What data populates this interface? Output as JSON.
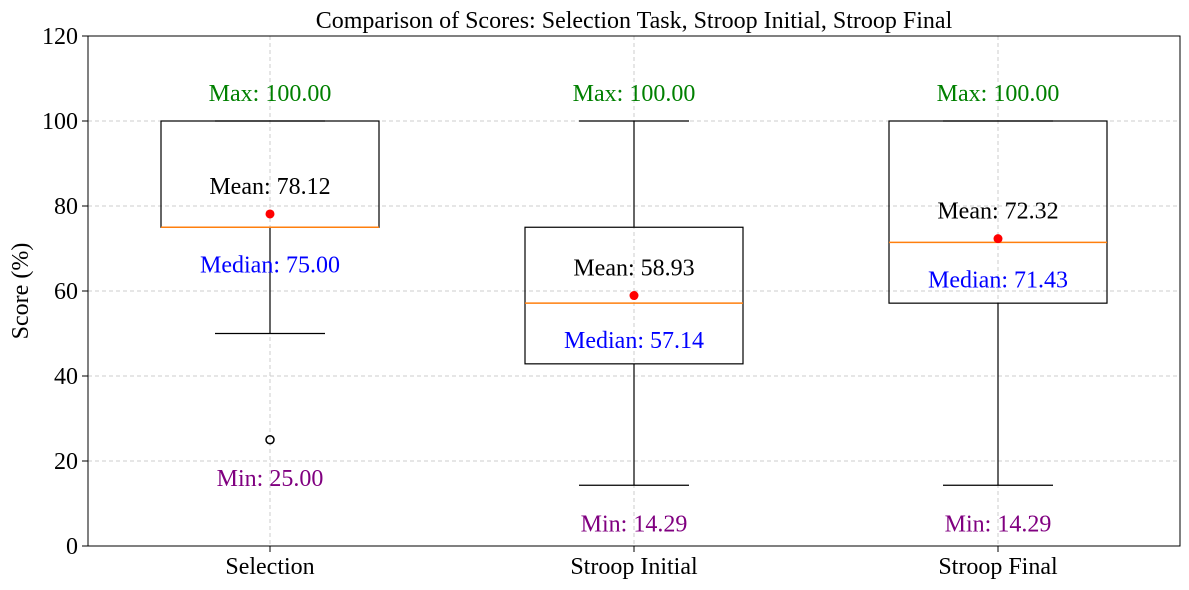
{
  "chart_data": {
    "type": "boxplot",
    "title": "Comparison of Scores: Selection Task, Stroop Initial, Stroop Final",
    "xlabel": "",
    "ylabel": "Score (%)",
    "ylim": [
      0,
      120
    ],
    "yticks": [
      0,
      20,
      40,
      60,
      80,
      100,
      120
    ],
    "grid": true,
    "categories": [
      "Selection",
      "Stroop Initial",
      "Stroop Final"
    ],
    "boxes": [
      {
        "category": "Selection",
        "whisker_low": 50.0,
        "q1": 75.0,
        "median": 75.0,
        "q3": 100.0,
        "whisker_high": 100.0,
        "mean": 78.12,
        "min": 25.0,
        "max": 100.0,
        "outliers": [
          25.0
        ],
        "mean_label": "Mean: 78.12",
        "median_label": "Median: 75.00",
        "max_label": "Max: 100.00",
        "min_label": "Min: 25.00"
      },
      {
        "category": "Stroop Initial",
        "whisker_low": 14.29,
        "q1": 42.86,
        "median": 57.14,
        "q3": 75.0,
        "whisker_high": 100.0,
        "mean": 58.93,
        "min": 14.29,
        "max": 100.0,
        "outliers": [],
        "mean_label": "Mean: 58.93",
        "median_label": "Median: 57.14",
        "max_label": "Max: 100.00",
        "min_label": "Min: 14.29"
      },
      {
        "category": "Stroop Final",
        "whisker_low": 14.29,
        "q1": 57.14,
        "median": 71.43,
        "q3": 100.0,
        "whisker_high": 100.0,
        "mean": 72.32,
        "min": 14.29,
        "max": 100.0,
        "outliers": [],
        "mean_label": "Mean: 72.32",
        "median_label": "Median: 71.43",
        "max_label": "Max: 100.00",
        "min_label": "Min: 14.29"
      }
    ],
    "colors": {
      "median_line": "#ff7f0e",
      "mean_marker": "#ff0000",
      "max_label": "#008000",
      "min_label": "#800080",
      "median_label": "#0000ff",
      "mean_label": "#000000",
      "box": "#000000",
      "grid": "#cccccc"
    }
  }
}
